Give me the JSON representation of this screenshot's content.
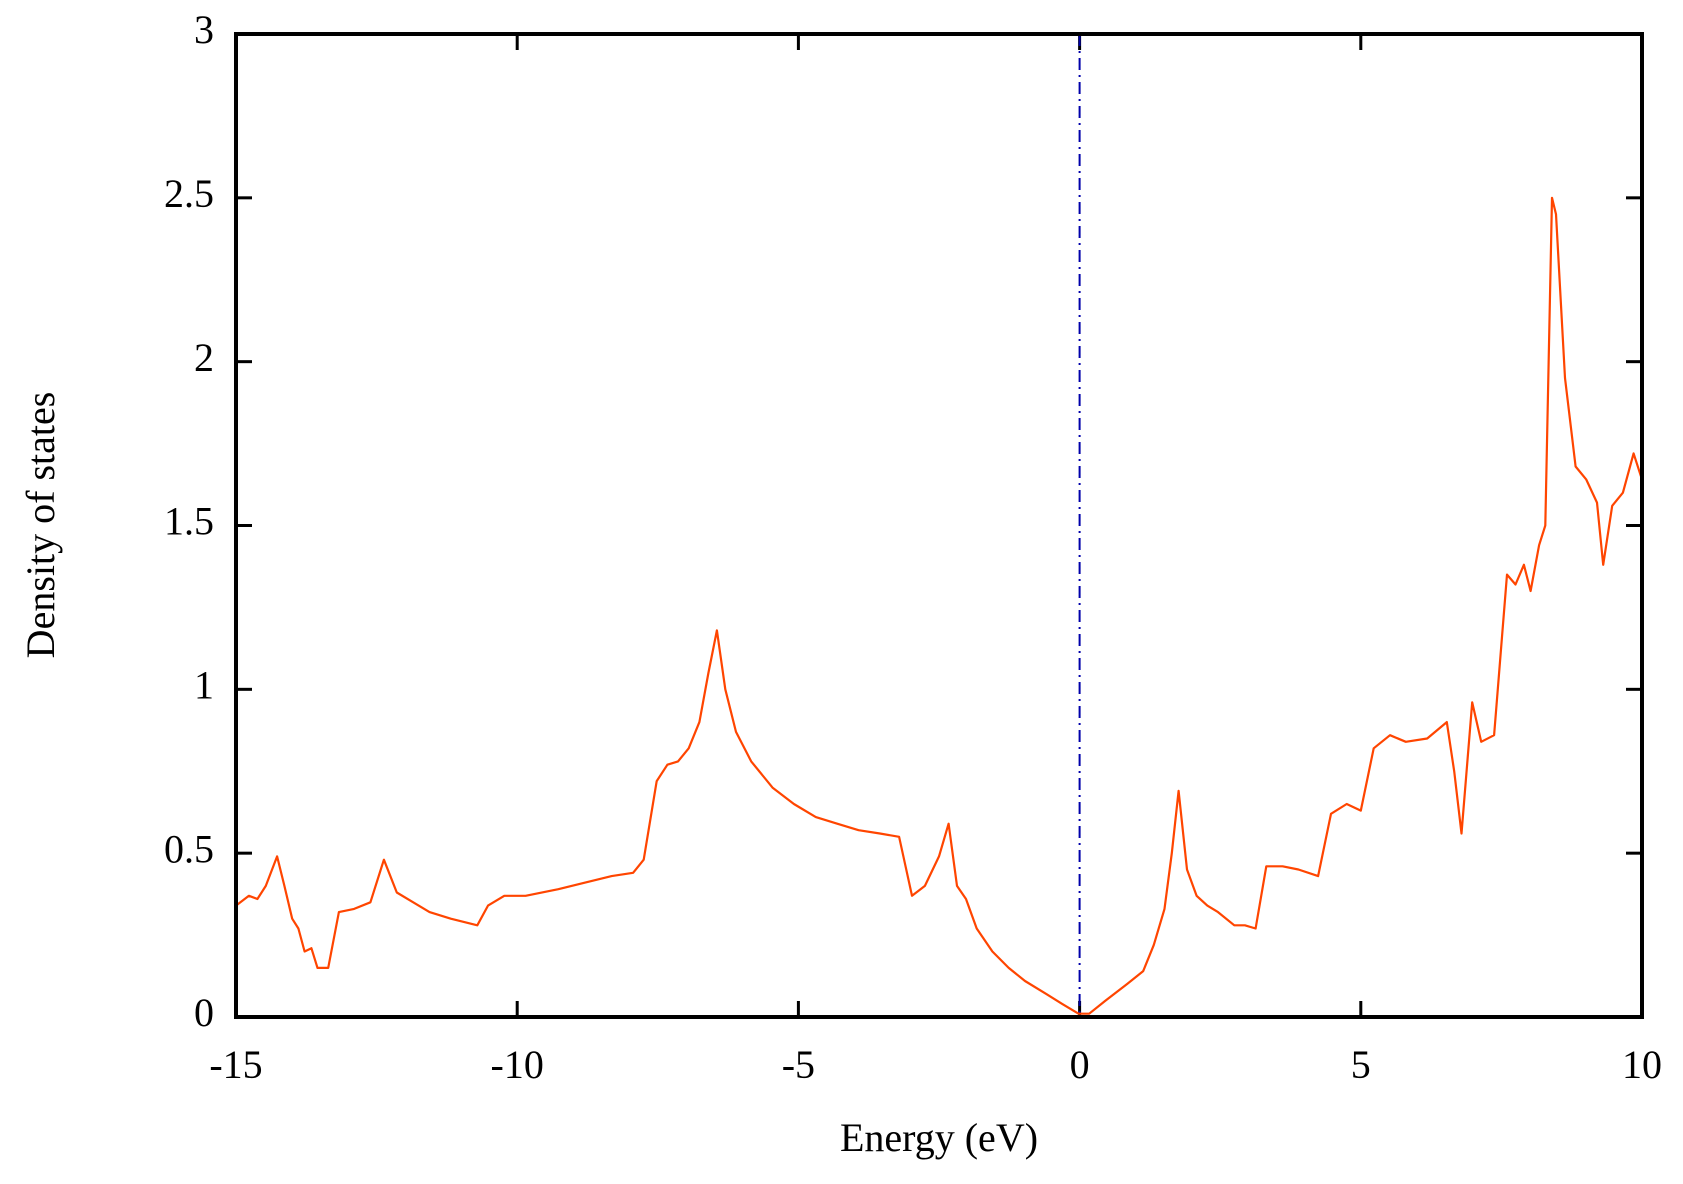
{
  "chart_data": {
    "type": "line",
    "xlabel": "Energy (eV)",
    "ylabel": "Density of  states",
    "x": [
      -15,
      -14.77,
      -14.62,
      -14.47,
      -14.27,
      -14.14,
      -14.0,
      -13.89,
      -13.78,
      -13.66,
      -13.55,
      -13.36,
      -13.17,
      -12.9,
      -12.61,
      -12.37,
      -12.14,
      -11.85,
      -11.56,
      -11.18,
      -10.71,
      -10.52,
      -10.23,
      -9.85,
      -9.27,
      -8.8,
      -8.32,
      -7.94,
      -7.75,
      -7.52,
      -7.33,
      -7.14,
      -6.95,
      -6.76,
      -6.6,
      -6.45,
      -6.3,
      -6.11,
      -5.84,
      -5.46,
      -5.08,
      -4.69,
      -4.31,
      -3.93,
      -3.55,
      -3.21,
      -2.98,
      -2.75,
      -2.5,
      -2.33,
      -2.18,
      -2.02,
      -1.83,
      -1.55,
      -1.26,
      -0.97,
      -0.59,
      -0.31,
      -0.02,
      0.17,
      0.46,
      0.84,
      1.13,
      1.32,
      1.51,
      1.64,
      1.76,
      1.91,
      2.08,
      2.27,
      2.46,
      2.75,
      2.94,
      3.13,
      3.32,
      3.61,
      3.89,
      4.24,
      4.47,
      4.75,
      5.0,
      5.23,
      5.52,
      5.8,
      6.18,
      6.53,
      6.66,
      6.79,
      6.98,
      7.14,
      7.37,
      7.6,
      7.75,
      7.9,
      8.02,
      8.17,
      8.28,
      8.4,
      8.47,
      8.63,
      8.82,
      9.01,
      9.2,
      9.31,
      9.47,
      9.66,
      9.85,
      10
    ],
    "series": [
      {
        "color": "#ff4500",
        "values": [
          0.34,
          0.37,
          0.36,
          0.4,
          0.49,
          0.4,
          0.3,
          0.27,
          0.2,
          0.21,
          0.15,
          0.15,
          0.32,
          0.33,
          0.35,
          0.48,
          0.38,
          0.35,
          0.32,
          0.3,
          0.28,
          0.34,
          0.37,
          0.37,
          0.39,
          0.41,
          0.43,
          0.44,
          0.48,
          0.72,
          0.77,
          0.78,
          0.82,
          0.9,
          1.05,
          1.18,
          1.0,
          0.87,
          0.78,
          0.7,
          0.65,
          0.61,
          0.59,
          0.57,
          0.56,
          0.55,
          0.37,
          0.4,
          0.49,
          0.59,
          0.4,
          0.36,
          0.27,
          0.2,
          0.15,
          0.11,
          0.07,
          0.04,
          0.01,
          0.01,
          0.05,
          0.1,
          0.14,
          0.22,
          0.33,
          0.5,
          0.69,
          0.45,
          0.37,
          0.34,
          0.32,
          0.28,
          0.28,
          0.27,
          0.46,
          0.46,
          0.45,
          0.43,
          0.62,
          0.65,
          0.63,
          0.82,
          0.86,
          0.84,
          0.85,
          0.9,
          0.75,
          0.56,
          0.96,
          0.84,
          0.86,
          1.35,
          1.32,
          1.38,
          1.3,
          1.44,
          1.5,
          2.5,
          2.45,
          1.95,
          1.68,
          1.64,
          1.57,
          1.38,
          1.56,
          1.6,
          1.72,
          1.64
        ]
      }
    ],
    "xlim": [
      -15,
      10
    ],
    "xticks": [
      -15,
      -10,
      -5,
      0,
      5,
      10
    ],
    "ylim": [
      0,
      3
    ],
    "yticks": [
      0,
      0.5,
      1,
      1.5,
      2,
      2.5,
      3
    ],
    "vertical_line": {
      "x": 0,
      "color": "#0000aa"
    }
  }
}
